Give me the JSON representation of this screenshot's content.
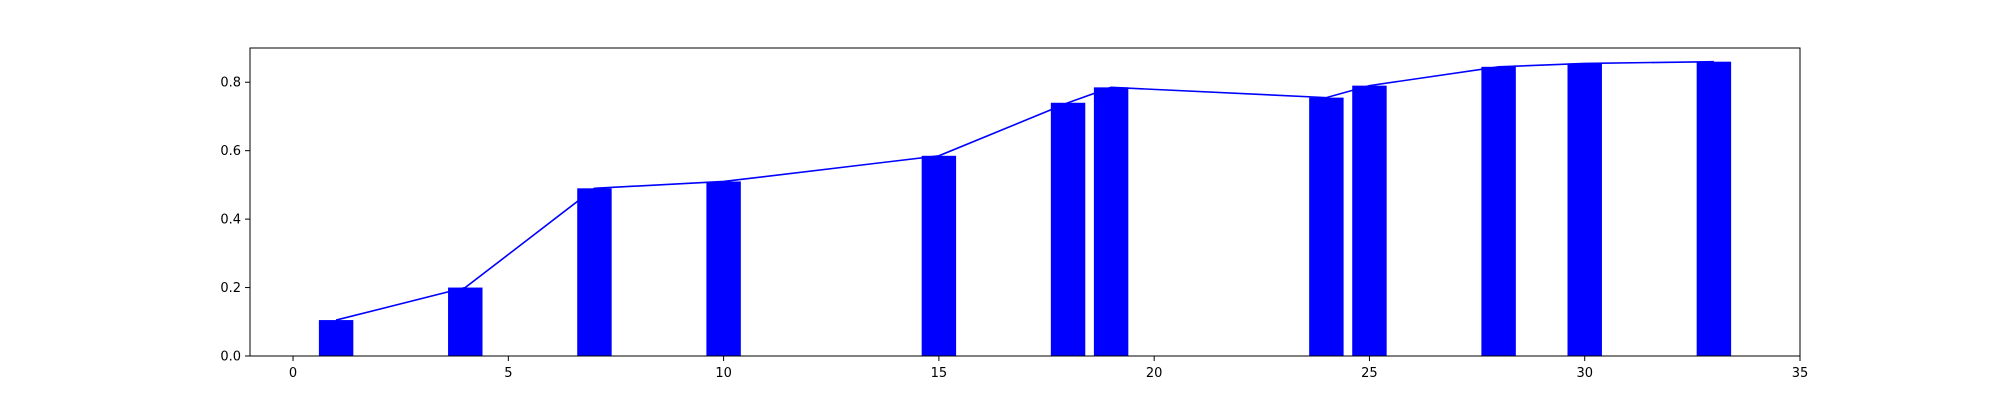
{
  "colors": {
    "bar": "#0000ff",
    "line": "#0000ff",
    "axis": "#000000",
    "background": "#ffffff"
  },
  "chart_data": {
    "type": "bar",
    "title": "",
    "xlabel": "",
    "ylabel": "",
    "xlim": [
      -1,
      35
    ],
    "ylim": [
      0,
      0.9
    ],
    "grid": false,
    "legend": "none",
    "x_ticks": [
      0,
      5,
      10,
      15,
      20,
      25,
      30,
      35
    ],
    "x_tick_labels": [
      "0",
      "5",
      "10",
      "15",
      "20",
      "25",
      "30",
      "35"
    ],
    "y_ticks": [
      0.0,
      0.2,
      0.4,
      0.6,
      0.8
    ],
    "y_tick_labels": [
      "0.0",
      "0.2",
      "0.4",
      "0.6",
      "0.8"
    ],
    "bar_width": 0.8,
    "series": [
      {
        "type": "bar",
        "x": [
          1,
          4,
          7,
          10,
          15,
          18,
          19,
          24,
          25,
          28,
          30,
          33
        ],
        "values": [
          0.105,
          0.2,
          0.49,
          0.51,
          0.585,
          0.74,
          0.785,
          0.755,
          0.79,
          0.845,
          0.855,
          0.86
        ]
      },
      {
        "type": "line",
        "x": [
          1,
          4,
          7,
          10,
          15,
          18,
          19,
          24,
          25,
          28,
          30,
          33
        ],
        "values": [
          0.105,
          0.2,
          0.49,
          0.51,
          0.585,
          0.74,
          0.785,
          0.755,
          0.79,
          0.845,
          0.855,
          0.86
        ]
      }
    ]
  }
}
